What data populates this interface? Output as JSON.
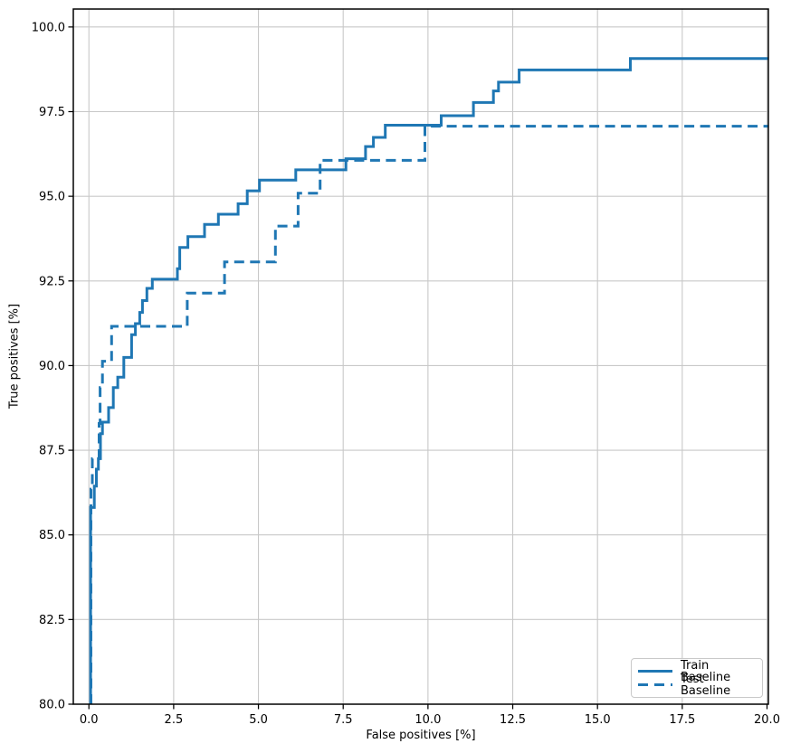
{
  "figure": {
    "background": "#ffffff",
    "accent_color": "#1f77b4",
    "grid_color": "#c8c8c8",
    "spine_color": "#000000"
  },
  "chart_data": {
    "type": "line",
    "subtype": "step",
    "title": "",
    "xlabel": "False positives [%]",
    "ylabel": "True positives [%]",
    "xlim": [
      -0.46,
      20.04
    ],
    "ylim": [
      80.0,
      100.53
    ],
    "grid": true,
    "xticks": [
      0.0,
      2.5,
      5.0,
      7.5,
      10.0,
      12.5,
      15.0,
      17.5,
      20.0
    ],
    "yticks": [
      80.0,
      82.5,
      85.0,
      87.5,
      90.0,
      92.5,
      95.0,
      97.5,
      100.0
    ],
    "xtick_labels": [
      "0.0",
      "2.5",
      "5.0",
      "7.5",
      "10.0",
      "12.5",
      "15.0",
      "17.5",
      "20.0"
    ],
    "ytick_labels": [
      "80.0",
      "82.5",
      "85.0",
      "87.5",
      "90.0",
      "92.5",
      "95.0",
      "97.5",
      "100.0"
    ],
    "legend": {
      "position": "lower right",
      "items": [
        {
          "label": "Train Baseline",
          "style": "solid"
        },
        {
          "label": "Test Baseline",
          "style": "dashed"
        }
      ]
    },
    "series": [
      {
        "name": "Train Baseline",
        "style": "solid",
        "color": "#1f77b4",
        "points": [
          [
            0.05,
            80.0
          ],
          [
            0.05,
            85.81
          ],
          [
            0.16,
            85.81
          ],
          [
            0.16,
            86.44
          ],
          [
            0.22,
            86.44
          ],
          [
            0.22,
            86.94
          ],
          [
            0.28,
            86.94
          ],
          [
            0.28,
            87.25
          ],
          [
            0.34,
            87.25
          ],
          [
            0.34,
            87.99
          ],
          [
            0.4,
            87.99
          ],
          [
            0.4,
            88.33
          ],
          [
            0.58,
            88.33
          ],
          [
            0.58,
            88.76
          ],
          [
            0.72,
            88.76
          ],
          [
            0.72,
            89.35
          ],
          [
            0.85,
            89.35
          ],
          [
            0.85,
            89.66
          ],
          [
            1.03,
            89.66
          ],
          [
            1.03,
            90.24
          ],
          [
            1.26,
            90.24
          ],
          [
            1.26,
            90.91
          ],
          [
            1.37,
            90.91
          ],
          [
            1.37,
            91.24
          ],
          [
            1.5,
            91.24
          ],
          [
            1.5,
            91.57
          ],
          [
            1.58,
            91.57
          ],
          [
            1.58,
            91.92
          ],
          [
            1.71,
            91.92
          ],
          [
            1.71,
            92.28
          ],
          [
            1.87,
            92.28
          ],
          [
            1.87,
            92.55
          ],
          [
            2.61,
            92.55
          ],
          [
            2.61,
            92.86
          ],
          [
            2.68,
            92.86
          ],
          [
            2.68,
            93.49
          ],
          [
            2.92,
            93.49
          ],
          [
            2.92,
            93.81
          ],
          [
            3.41,
            93.81
          ],
          [
            3.41,
            94.17
          ],
          [
            3.82,
            94.17
          ],
          [
            3.82,
            94.47
          ],
          [
            4.4,
            94.47
          ],
          [
            4.4,
            94.78
          ],
          [
            4.67,
            94.78
          ],
          [
            4.67,
            95.16
          ],
          [
            5.03,
            95.16
          ],
          [
            5.03,
            95.48
          ],
          [
            6.1,
            95.48
          ],
          [
            6.1,
            95.78
          ],
          [
            7.58,
            95.78
          ],
          [
            7.58,
            96.11
          ],
          [
            8.16,
            96.11
          ],
          [
            8.16,
            96.47
          ],
          [
            8.39,
            96.47
          ],
          [
            8.39,
            96.74
          ],
          [
            8.74,
            96.74
          ],
          [
            8.74,
            97.1
          ],
          [
            10.39,
            97.1
          ],
          [
            10.39,
            97.38
          ],
          [
            11.34,
            97.38
          ],
          [
            11.34,
            97.77
          ],
          [
            11.93,
            97.77
          ],
          [
            11.93,
            98.11
          ],
          [
            12.08,
            98.11
          ],
          [
            12.08,
            98.37
          ],
          [
            12.69,
            98.37
          ],
          [
            12.69,
            98.73
          ],
          [
            15.97,
            98.73
          ],
          [
            15.97,
            99.07
          ],
          [
            20.04,
            99.07
          ]
        ]
      },
      {
        "name": "Test Baseline",
        "style": "dashed",
        "color": "#1f77b4",
        "points": [
          [
            0.06,
            80.0
          ],
          [
            0.06,
            86.35
          ],
          [
            0.1,
            86.35
          ],
          [
            0.1,
            87.25
          ],
          [
            0.3,
            87.25
          ],
          [
            0.3,
            88.29
          ],
          [
            0.33,
            88.29
          ],
          [
            0.33,
            89.35
          ],
          [
            0.4,
            89.35
          ],
          [
            0.4,
            90.13
          ],
          [
            0.67,
            90.13
          ],
          [
            0.67,
            91.16
          ],
          [
            2.9,
            91.16
          ],
          [
            2.9,
            92.14
          ],
          [
            4.0,
            92.14
          ],
          [
            4.0,
            93.06
          ],
          [
            5.5,
            93.06
          ],
          [
            5.5,
            94.12
          ],
          [
            6.17,
            94.12
          ],
          [
            6.17,
            95.09
          ],
          [
            6.82,
            95.09
          ],
          [
            6.82,
            96.06
          ],
          [
            9.91,
            96.06
          ],
          [
            9.91,
            97.07
          ],
          [
            20.04,
            97.07
          ]
        ]
      }
    ]
  }
}
